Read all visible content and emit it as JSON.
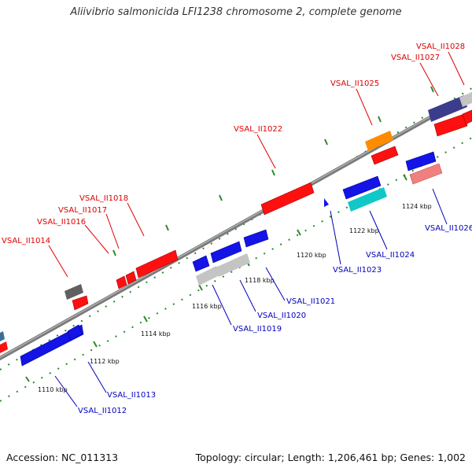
{
  "title": "Aliivibrio salmonicida LFI1238 chromosome 2, complete genome",
  "footer": {
    "accession": "Accession: NC_011313",
    "topology": "Topology: circular; Length: 1,206,461 bp; Genes: 1,002"
  },
  "colors": {
    "backbone": "#8a8a8a",
    "red": "#ff1010",
    "blue": "#1414e6",
    "gray": "#c4c4c4",
    "darkgray": "#606060",
    "orange": "#ff8c00",
    "cyan": "#10c8c8",
    "pink": "#f08080",
    "navy": "#3c3c8c",
    "teal": "#3c6e9a",
    "label_red": "#dd0000",
    "label_blue": "#0000bb",
    "tick": "#2a8a2a"
  },
  "ticks": [
    {
      "label": "1110 kbp"
    },
    {
      "label": "1112 kbp"
    },
    {
      "label": "1114 kbp"
    },
    {
      "label": "1116 kbp"
    },
    {
      "label": "1118 kbp"
    },
    {
      "label": "1120 kbp"
    },
    {
      "label": "1122 kbp"
    },
    {
      "label": "1124 kbp"
    }
  ],
  "genes": [
    {
      "label": "VSAL_II1012",
      "strand": "reverse",
      "color": "blue"
    },
    {
      "label": "VSAL_II1013",
      "strand": "reverse",
      "color": "blue"
    },
    {
      "label": "VSAL_II1014",
      "strand": "forward",
      "color": "red"
    },
    {
      "label": "VSAL_II1016",
      "strand": "forward",
      "color": "red"
    },
    {
      "label": "VSAL_II1017",
      "strand": "forward",
      "color": "red"
    },
    {
      "label": "VSAL_II1018",
      "strand": "forward",
      "color": "red"
    },
    {
      "label": "VSAL_II1019",
      "strand": "reverse",
      "color": "blue"
    },
    {
      "label": "VSAL_II1020",
      "strand": "reverse",
      "color": "blue"
    },
    {
      "label": "VSAL_II1021",
      "strand": "reverse",
      "color": "blue"
    },
    {
      "label": "VSAL_II1022",
      "strand": "forward",
      "color": "red"
    },
    {
      "label": "VSAL_II1023",
      "strand": "reverse",
      "color": "blue"
    },
    {
      "label": "VSAL_II1024",
      "strand": "reverse",
      "color": "cyan"
    },
    {
      "label": "VSAL_II1025",
      "strand": "forward",
      "color": "orange"
    },
    {
      "label": "VSAL_II1026",
      "strand": "reverse",
      "color": "pink"
    },
    {
      "label": "VSAL_II1027",
      "strand": "forward",
      "color": "red"
    },
    {
      "label": "VSAL_II1028",
      "strand": "forward",
      "color": "red"
    }
  ]
}
